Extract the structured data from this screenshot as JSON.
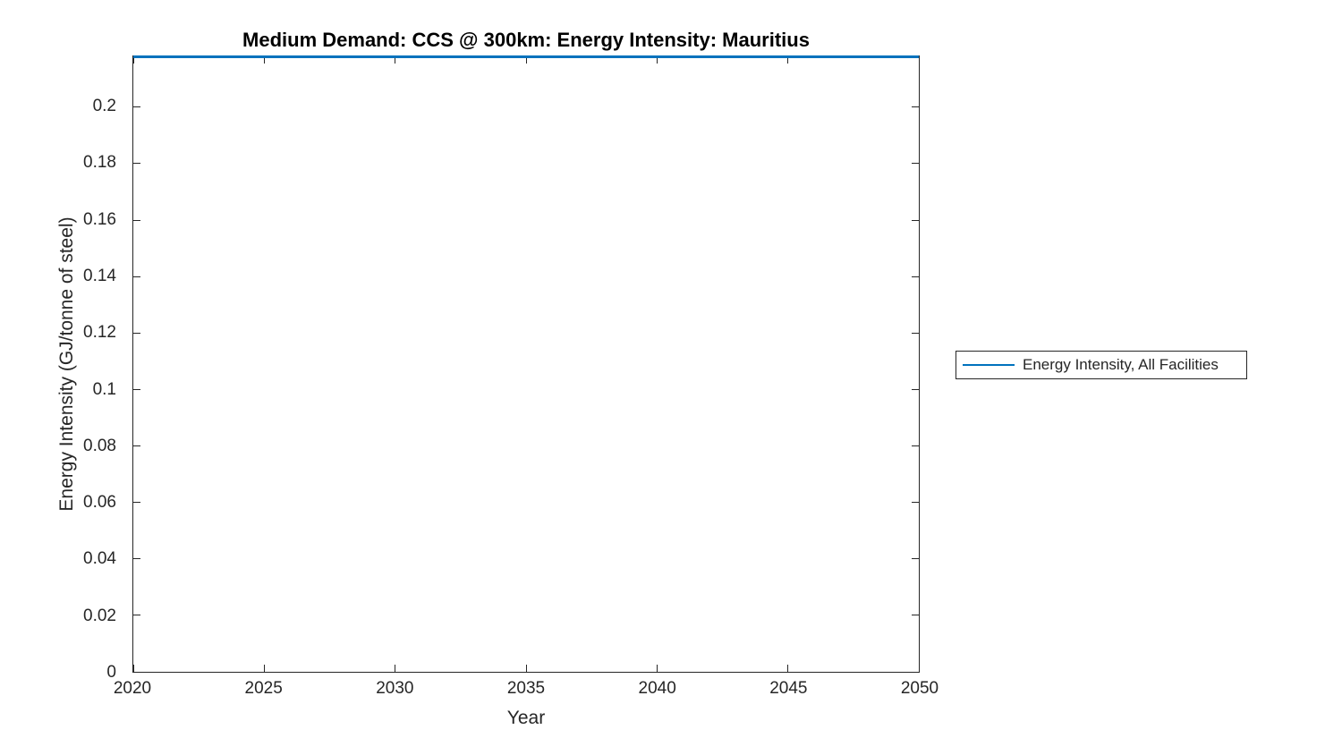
{
  "figure": {
    "background": "#ffffff"
  },
  "colors": {
    "line": "#0072BD",
    "axis": "#262626",
    "tick_text": "#262626",
    "title_text": "#000000",
    "legend_border": "#262626"
  },
  "legend": {
    "items": [
      {
        "label": "Energy Intensity, All Facilities",
        "color": "#0072BD"
      }
    ],
    "position": "right-outside"
  },
  "chart_data": {
    "type": "line",
    "title": "Medium Demand: CCS @ 300km: Energy Intensity: Mauritius",
    "xlabel": "Year",
    "ylabel": "Energy Intensity (GJ/tonne of steel)",
    "xlim": [
      2020,
      2050
    ],
    "ylim": [
      0,
      0.218
    ],
    "x_ticks": [
      2020,
      2025,
      2030,
      2035,
      2040,
      2045,
      2050
    ],
    "y_ticks": [
      0,
      0.02,
      0.04,
      0.06,
      0.08,
      0.1,
      0.12,
      0.14,
      0.16,
      0.18,
      0.2
    ],
    "grid": false,
    "legend_position": "right-outside",
    "series": [
      {
        "name": "Energy Intensity, All Facilities",
        "color": "#0072BD",
        "x": [
          2020,
          2050
        ],
        "values": [
          0.218,
          0.218
        ],
        "note": "constant horizontal line drawn along the top edge of the axes (value estimated from axis upper limit ~0.218)"
      }
    ]
  }
}
